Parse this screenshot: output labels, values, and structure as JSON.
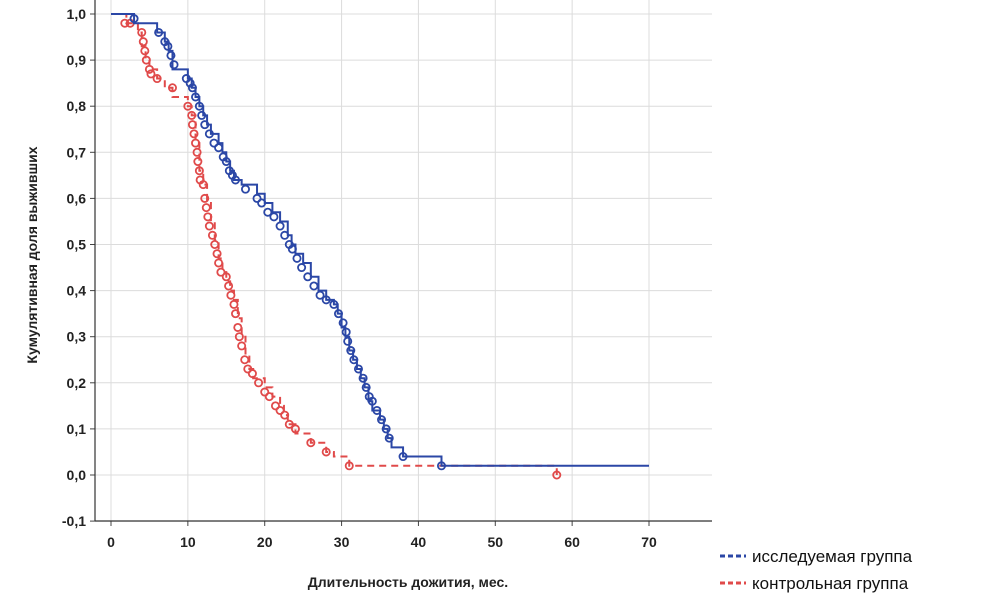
{
  "chart_data": {
    "type": "line",
    "xlabel": "Длительность дожития, мес.",
    "ylabel": "Кумулятивная доля выживших",
    "xlim": [
      -1.5,
      73
    ],
    "ylim": [
      -0.1,
      1.0
    ],
    "x_ticks": [
      0,
      10,
      20,
      30,
      40,
      50,
      60,
      70
    ],
    "x_tick_labels": [
      "0",
      "10",
      "20",
      "30",
      "40",
      "50",
      "60",
      "70"
    ],
    "y_ticks": [
      1.0,
      0.9,
      0.8,
      0.7,
      0.6,
      0.5,
      0.4,
      0.3,
      0.2,
      0.1,
      0.0,
      -0.1
    ],
    "y_tick_labels": [
      "1,0",
      "0,9",
      "0,8",
      "0,7",
      "0,6",
      "0,5",
      "0,4",
      "0,3",
      "0,2",
      "0,1",
      "0,0",
      "-0,1"
    ],
    "grid": true,
    "legend_position": "bottom-right",
    "series": [
      {
        "name": "исследуемая группа",
        "color": "#2b47a6",
        "line_style": "solid",
        "steps": [
          [
            0,
            1.0
          ],
          [
            3,
            0.98
          ],
          [
            6,
            0.96
          ],
          [
            7,
            0.94
          ],
          [
            7.5,
            0.92
          ],
          [
            8,
            0.88
          ],
          [
            10,
            0.86
          ],
          [
            10.5,
            0.84
          ],
          [
            11,
            0.82
          ],
          [
            11.5,
            0.8
          ],
          [
            12,
            0.78
          ],
          [
            12.5,
            0.76
          ],
          [
            13,
            0.74
          ],
          [
            14,
            0.72
          ],
          [
            14.5,
            0.7
          ],
          [
            15,
            0.68
          ],
          [
            15.5,
            0.66
          ],
          [
            16,
            0.64
          ],
          [
            17,
            0.63
          ],
          [
            19,
            0.61
          ],
          [
            20,
            0.59
          ],
          [
            21,
            0.57
          ],
          [
            22,
            0.55
          ],
          [
            23,
            0.52
          ],
          [
            23.5,
            0.5
          ],
          [
            24,
            0.48
          ],
          [
            25,
            0.46
          ],
          [
            26,
            0.43
          ],
          [
            27,
            0.4
          ],
          [
            28,
            0.38
          ],
          [
            29,
            0.37
          ],
          [
            29.5,
            0.35
          ],
          [
            30,
            0.32
          ],
          [
            30.5,
            0.3
          ],
          [
            31,
            0.27
          ],
          [
            31.5,
            0.25
          ],
          [
            32,
            0.23
          ],
          [
            32.5,
            0.21
          ],
          [
            33,
            0.19
          ],
          [
            33.5,
            0.16
          ],
          [
            34,
            0.14
          ],
          [
            35,
            0.12
          ],
          [
            35.5,
            0.1
          ],
          [
            36,
            0.08
          ],
          [
            36.5,
            0.06
          ],
          [
            38,
            0.04
          ],
          [
            43,
            0.02
          ],
          [
            70,
            0.02
          ]
        ],
        "censored": [
          [
            3,
            0.99
          ],
          [
            6.2,
            0.96
          ],
          [
            7,
            0.94
          ],
          [
            7.4,
            0.93
          ],
          [
            7.8,
            0.91
          ],
          [
            8.2,
            0.89
          ],
          [
            9.8,
            0.86
          ],
          [
            10.3,
            0.85
          ],
          [
            10.6,
            0.84
          ],
          [
            11,
            0.82
          ],
          [
            11.5,
            0.8
          ],
          [
            11.8,
            0.78
          ],
          [
            12.2,
            0.76
          ],
          [
            12.8,
            0.74
          ],
          [
            13.4,
            0.72
          ],
          [
            14,
            0.71
          ],
          [
            14.6,
            0.69
          ],
          [
            15,
            0.68
          ],
          [
            15.4,
            0.66
          ],
          [
            15.8,
            0.65
          ],
          [
            16.2,
            0.64
          ],
          [
            17.5,
            0.62
          ],
          [
            19,
            0.6
          ],
          [
            19.6,
            0.59
          ],
          [
            20.4,
            0.57
          ],
          [
            21.2,
            0.56
          ],
          [
            22,
            0.54
          ],
          [
            22.6,
            0.52
          ],
          [
            23.2,
            0.5
          ],
          [
            23.6,
            0.49
          ],
          [
            24.2,
            0.47
          ],
          [
            24.8,
            0.45
          ],
          [
            25.6,
            0.43
          ],
          [
            26.4,
            0.41
          ],
          [
            27.2,
            0.39
          ],
          [
            28,
            0.38
          ],
          [
            29,
            0.37
          ],
          [
            29.6,
            0.35
          ],
          [
            30.2,
            0.33
          ],
          [
            30.6,
            0.31
          ],
          [
            30.8,
            0.29
          ],
          [
            31.2,
            0.27
          ],
          [
            31.6,
            0.25
          ],
          [
            32.2,
            0.23
          ],
          [
            32.8,
            0.21
          ],
          [
            33.2,
            0.19
          ],
          [
            33.6,
            0.17
          ],
          [
            34,
            0.16
          ],
          [
            34.6,
            0.14
          ],
          [
            35.2,
            0.12
          ],
          [
            35.8,
            0.1
          ],
          [
            36.2,
            0.08
          ],
          [
            38,
            0.04
          ],
          [
            43,
            0.02
          ]
        ]
      },
      {
        "name": "контрольная группа",
        "color": "#e04a4a",
        "line_style": "dashed",
        "steps": [
          [
            0,
            1.0
          ],
          [
            2,
            0.98
          ],
          [
            3.5,
            0.96
          ],
          [
            4,
            0.93
          ],
          [
            4.5,
            0.9
          ],
          [
            5,
            0.88
          ],
          [
            6,
            0.86
          ],
          [
            7,
            0.84
          ],
          [
            8,
            0.82
          ],
          [
            10,
            0.8
          ],
          [
            10.5,
            0.78
          ],
          [
            11,
            0.72
          ],
          [
            11.5,
            0.66
          ],
          [
            12,
            0.63
          ],
          [
            12.5,
            0.59
          ],
          [
            13,
            0.55
          ],
          [
            13.5,
            0.51
          ],
          [
            14,
            0.47
          ],
          [
            14.5,
            0.44
          ],
          [
            15,
            0.42
          ],
          [
            15.5,
            0.4
          ],
          [
            16,
            0.38
          ],
          [
            16.5,
            0.34
          ],
          [
            17,
            0.3
          ],
          [
            17.5,
            0.26
          ],
          [
            18,
            0.23
          ],
          [
            18.5,
            0.21
          ],
          [
            20,
            0.19
          ],
          [
            21,
            0.17
          ],
          [
            22,
            0.15
          ],
          [
            22.5,
            0.13
          ],
          [
            23,
            0.11
          ],
          [
            24,
            0.09
          ],
          [
            26,
            0.07
          ],
          [
            28,
            0.05
          ],
          [
            29,
            0.04
          ],
          [
            31,
            0.02
          ],
          [
            58,
            0.0
          ]
        ],
        "censored": [
          [
            1.8,
            0.98
          ],
          [
            2.5,
            0.98
          ],
          [
            4,
            0.96
          ],
          [
            4.2,
            0.94
          ],
          [
            4.4,
            0.92
          ],
          [
            4.6,
            0.9
          ],
          [
            5,
            0.88
          ],
          [
            5.2,
            0.87
          ],
          [
            6,
            0.86
          ],
          [
            8,
            0.84
          ],
          [
            10,
            0.8
          ],
          [
            10.5,
            0.78
          ],
          [
            10.6,
            0.76
          ],
          [
            10.8,
            0.74
          ],
          [
            11,
            0.72
          ],
          [
            11.2,
            0.7
          ],
          [
            11.3,
            0.68
          ],
          [
            11.5,
            0.66
          ],
          [
            11.6,
            0.64
          ],
          [
            12,
            0.63
          ],
          [
            12.2,
            0.6
          ],
          [
            12.4,
            0.58
          ],
          [
            12.6,
            0.56
          ],
          [
            12.8,
            0.54
          ],
          [
            13.2,
            0.52
          ],
          [
            13.5,
            0.5
          ],
          [
            13.8,
            0.48
          ],
          [
            14,
            0.46
          ],
          [
            14.3,
            0.44
          ],
          [
            15,
            0.43
          ],
          [
            15.3,
            0.41
          ],
          [
            15.6,
            0.39
          ],
          [
            16,
            0.37
          ],
          [
            16.2,
            0.35
          ],
          [
            16.5,
            0.32
          ],
          [
            16.7,
            0.3
          ],
          [
            17,
            0.28
          ],
          [
            17.4,
            0.25
          ],
          [
            17.8,
            0.23
          ],
          [
            18.4,
            0.22
          ],
          [
            19.2,
            0.2
          ],
          [
            20,
            0.18
          ],
          [
            20.6,
            0.17
          ],
          [
            21.4,
            0.15
          ],
          [
            22,
            0.14
          ],
          [
            22.6,
            0.13
          ],
          [
            23.2,
            0.11
          ],
          [
            24,
            0.1
          ],
          [
            26,
            0.07
          ],
          [
            28,
            0.05
          ],
          [
            31,
            0.02
          ],
          [
            58,
            0.0
          ]
        ]
      }
    ]
  }
}
